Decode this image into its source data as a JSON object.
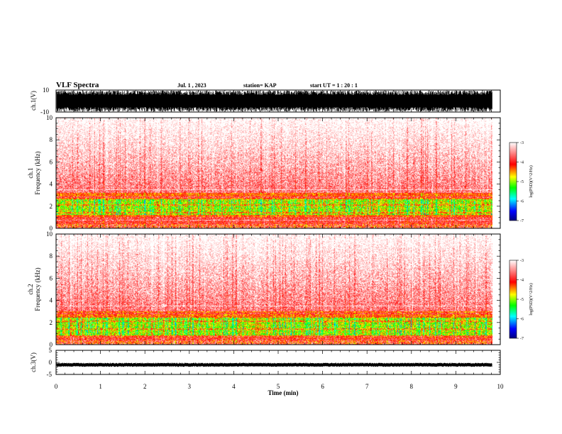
{
  "header": {
    "title": "VLF Spectra",
    "date": "Jul. 1 , 2023",
    "station": "station= KAP",
    "start_ut": "start UT =  1 : 20 : 1"
  },
  "chart_data": [
    {
      "id": "ch1-waveform",
      "type": "line",
      "ylabel": "ch.1(V)",
      "ylim": [
        -10,
        10
      ],
      "ytick_labels": [
        "10",
        "-10"
      ],
      "description_values": "dense noise waveform saturating -10 to 10 V"
    },
    {
      "id": "ch1-spectrogram",
      "type": "heatmap",
      "ylabel": "ch.1\nFrequency (kHz)",
      "ylabel_lines": [
        "ch.1",
        "Frequency (kHz)"
      ],
      "ylim": [
        0,
        10
      ],
      "ytick_labels": [
        "0",
        "2",
        "4",
        "6",
        "8",
        "10"
      ],
      "xlim": [
        0,
        9.8
      ],
      "intense_band_khz": [
        1.0,
        3.2
      ],
      "peak_band_khz": [
        1.2,
        2.6
      ],
      "colorbar": {
        "label": "log(PSD)(V^2/Hz)",
        "min": -7,
        "max": -3,
        "ticks": [
          "-3",
          "-4",
          "-5",
          "-6",
          "-7"
        ]
      }
    },
    {
      "id": "ch2-spectrogram",
      "type": "heatmap",
      "ylabel": "ch.2\nFrequency (kHz)",
      "ylabel_lines": [
        "ch.2",
        "Frequency (kHz)"
      ],
      "ylim": [
        0,
        10
      ],
      "ytick_labels": [
        "0",
        "2",
        "4",
        "6",
        "8",
        "10"
      ],
      "xlim": [
        0,
        9.8
      ],
      "intense_band_khz": [
        0.6,
        3.0
      ],
      "peak_band_khz": [
        0.8,
        2.4
      ],
      "colorbar": {
        "label": "log(PSD)(V^2/Hz)",
        "min": -7,
        "max": -3,
        "ticks": [
          "-3",
          "-4",
          "-5",
          "-6",
          "-7"
        ]
      }
    },
    {
      "id": "ch3-waveform",
      "type": "line",
      "ylabel": "ch.3(V)",
      "ylim": [
        -5,
        5
      ],
      "ytick_labels": [
        "5",
        "0",
        "-5"
      ],
      "level_v": -1.0
    }
  ],
  "xaxis": {
    "label": "Time (min)",
    "range": [
      0,
      10
    ],
    "tick_labels": [
      "0",
      "1",
      "2",
      "3",
      "4",
      "5",
      "6",
      "7",
      "8",
      "9",
      "10"
    ]
  },
  "colors": {
    "colormap": [
      "#000080",
      "#0000ff",
      "#00ffff",
      "#00ff00",
      "#ffff00",
      "#ff0000",
      "#ffffff"
    ],
    "signal": "#000000"
  }
}
